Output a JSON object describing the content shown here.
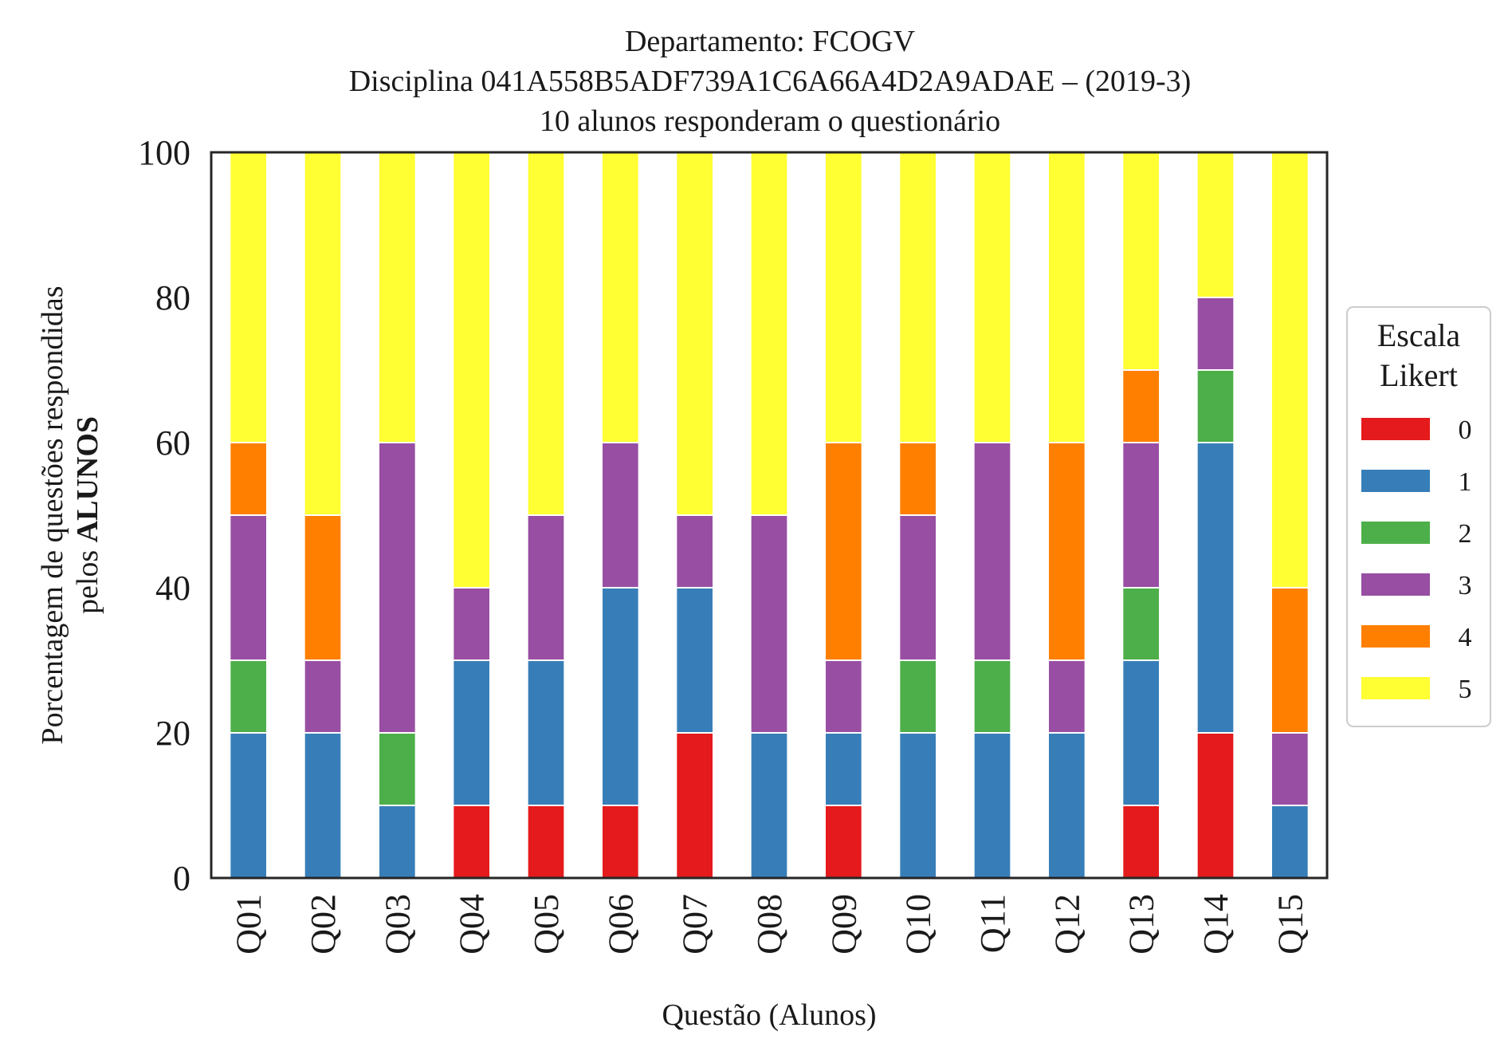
{
  "chart_data": {
    "type": "bar",
    "stacked": true,
    "title": [
      "Departamento: FCOGV",
      "Disciplina 041A558B5ADF739A1C6A66A4D2A9ADAE – (2019-3)",
      "10 alunos responderam o questionário"
    ],
    "xlabel": "Questão (Alunos)",
    "ylabel_line1": "Porcentagem de questões respondidas",
    "ylabel_line2_prefix": "pelos ",
    "ylabel_line2_bold": "ALUNOS",
    "ylim": [
      0,
      100
    ],
    "yticks": [
      "0",
      "20",
      "40",
      "60",
      "80",
      "100"
    ],
    "categories": [
      "Q01",
      "Q02",
      "Q03",
      "Q04",
      "Q05",
      "Q06",
      "Q07",
      "Q08",
      "Q09",
      "Q10",
      "Q11",
      "Q12",
      "Q13",
      "Q14",
      "Q15"
    ],
    "grid": false,
    "legend": {
      "title_line1": "Escala",
      "title_line2": "Likert",
      "placement": "right"
    },
    "series": [
      {
        "name": "0",
        "color": "#e41a1c",
        "values": [
          0,
          0,
          0,
          10,
          10,
          10,
          20,
          0,
          10,
          0,
          0,
          0,
          10,
          20,
          0
        ]
      },
      {
        "name": "1",
        "color": "#377eb8",
        "values": [
          20,
          20,
          10,
          20,
          20,
          30,
          20,
          20,
          10,
          20,
          20,
          20,
          20,
          40,
          10
        ]
      },
      {
        "name": "2",
        "color": "#4daf4a",
        "values": [
          10,
          0,
          10,
          0,
          0,
          0,
          0,
          0,
          0,
          10,
          10,
          0,
          10,
          10,
          0
        ]
      },
      {
        "name": "3",
        "color": "#984ea3",
        "values": [
          20,
          10,
          40,
          10,
          20,
          20,
          10,
          30,
          10,
          20,
          30,
          10,
          20,
          10,
          10
        ]
      },
      {
        "name": "4",
        "color": "#ff7f00",
        "values": [
          10,
          20,
          0,
          0,
          0,
          0,
          0,
          0,
          30,
          10,
          0,
          30,
          10,
          0,
          20
        ]
      },
      {
        "name": "5",
        "color": "#ffff33",
        "values": [
          40,
          50,
          40,
          60,
          50,
          40,
          50,
          50,
          40,
          40,
          40,
          40,
          30,
          20,
          60
        ]
      }
    ]
  }
}
